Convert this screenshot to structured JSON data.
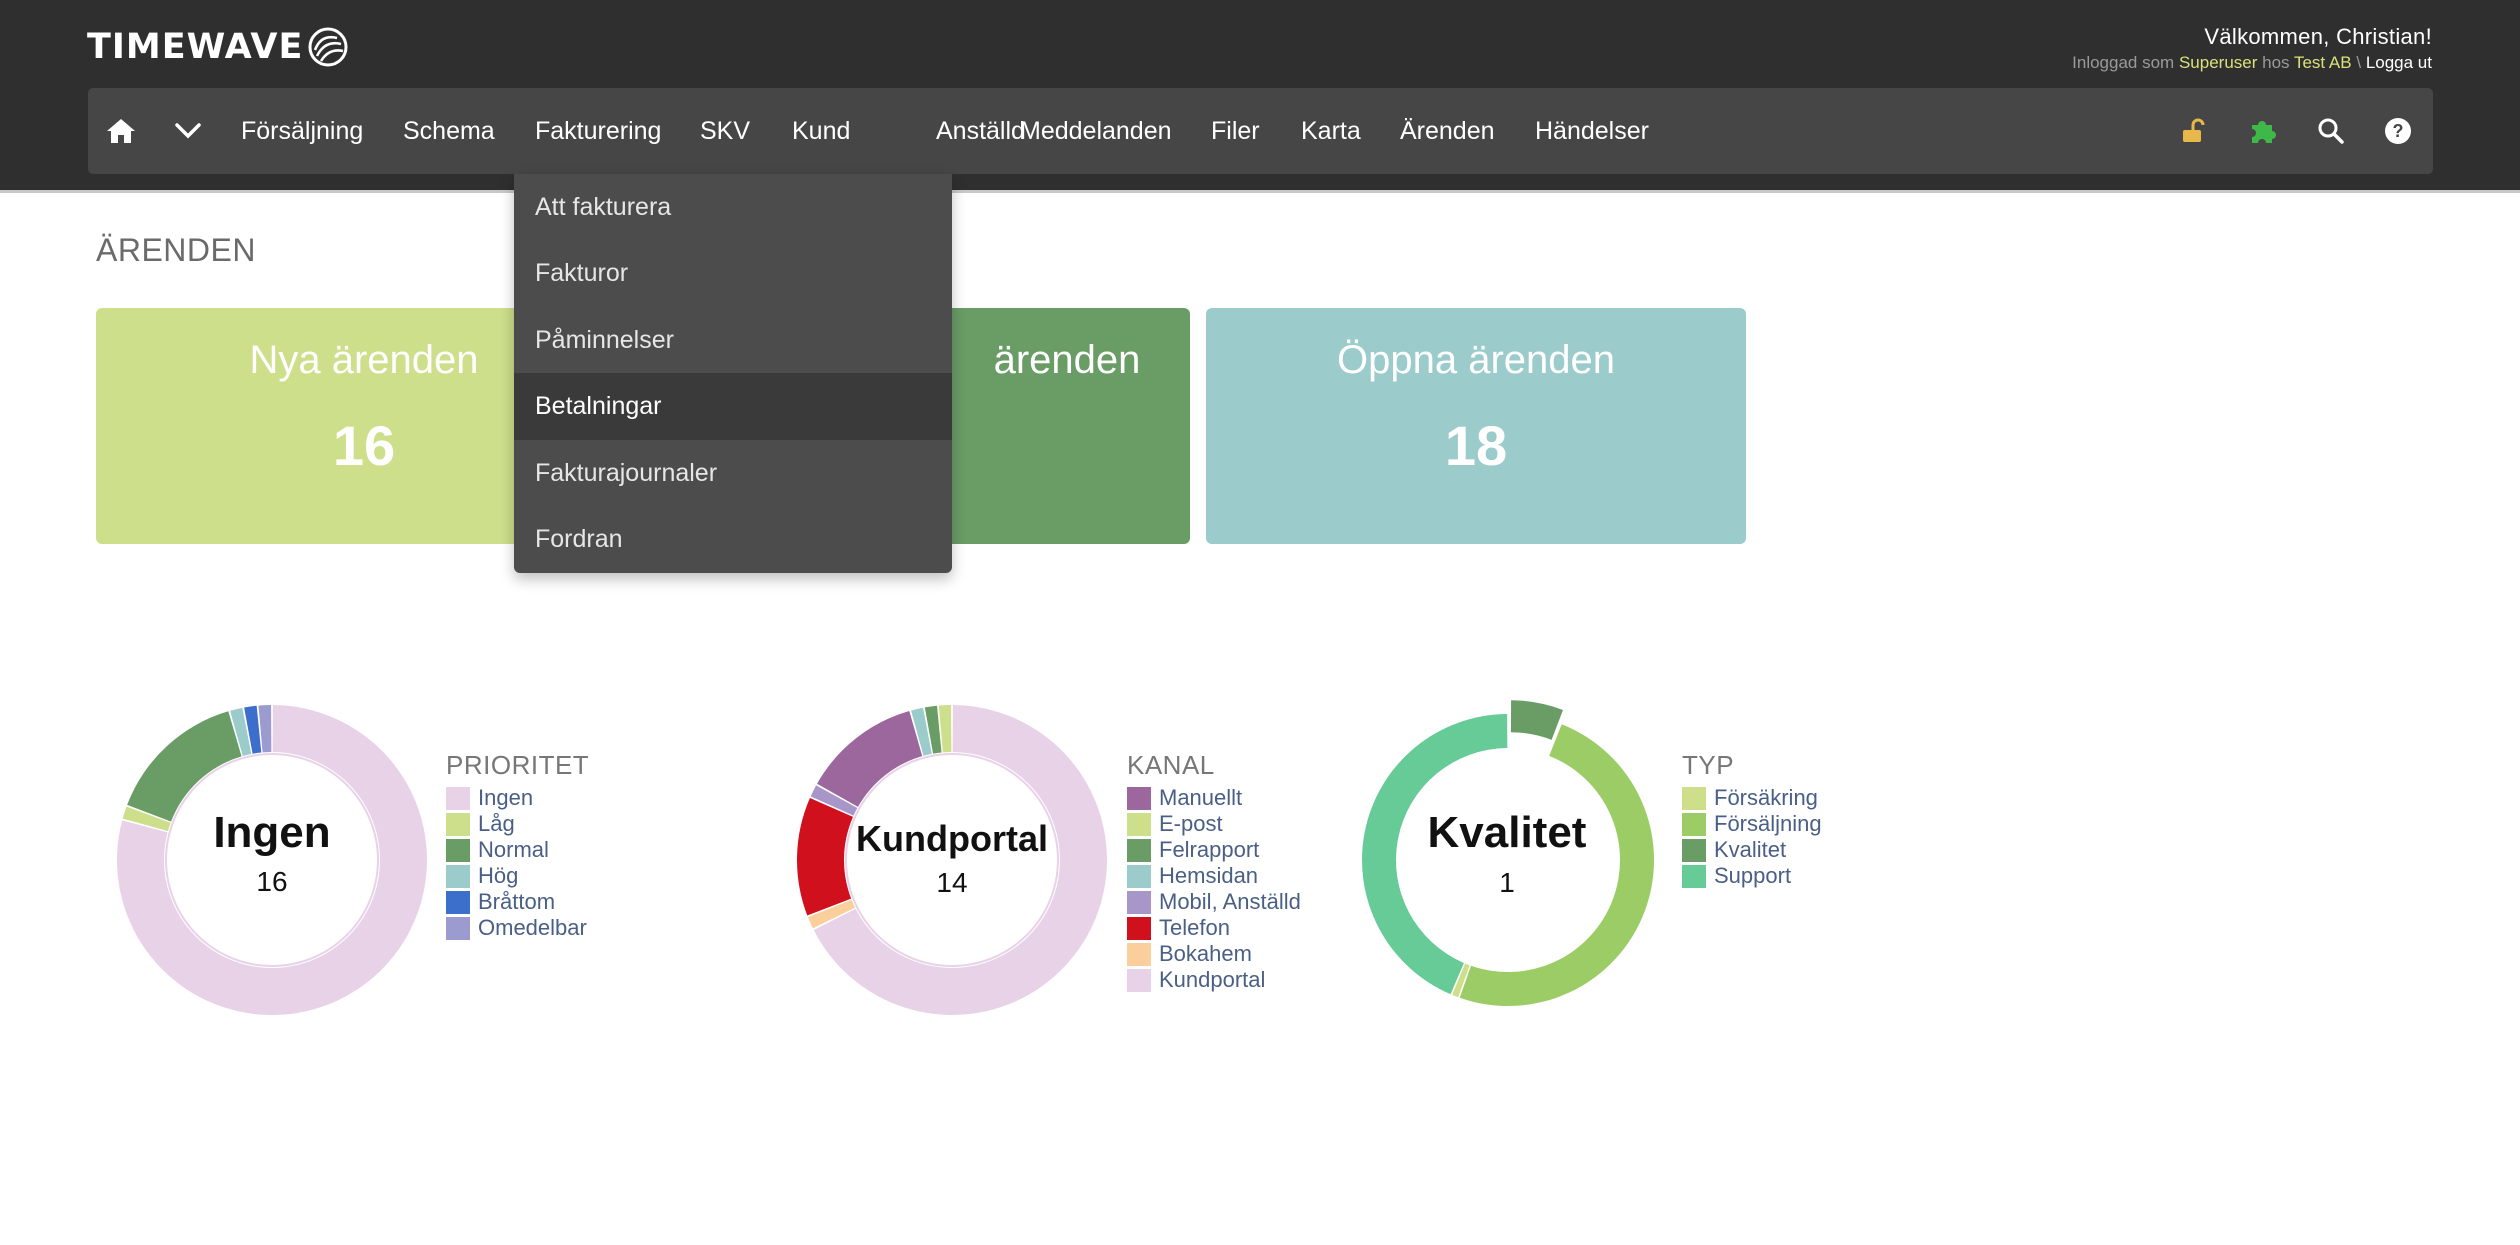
{
  "header": {
    "logo_text": "TIMEWAVE",
    "welcome": "Välkommen, Christian!",
    "login_prefix": "Inloggad som",
    "user": "Superuser",
    "at": "hos",
    "company": "Test AB",
    "separator": "\\",
    "logout": "Logga ut"
  },
  "nav": {
    "items": [
      "Försäljning",
      "Schema",
      "Fakturering",
      "SKV",
      "Kund",
      "Anställd",
      "Meddelanden",
      "Filer",
      "Karta",
      "Ärenden",
      "Händelser"
    ],
    "icons": [
      "home-icon",
      "chevron-down-icon",
      "unlock-icon",
      "puzzle-icon",
      "search-icon",
      "help-icon"
    ]
  },
  "dropdown": {
    "items": [
      "Att fakturera",
      "Fakturor",
      "Påminnelser",
      "Betalningar",
      "Fakturajournaler",
      "Fordran"
    ],
    "active_index": 3
  },
  "page": {
    "title": "ÄRENDEN"
  },
  "cards": [
    {
      "title": "Nya ärenden",
      "value": "16",
      "color": "#cddf8b"
    },
    {
      "title": "ärenden",
      "value": "",
      "color": "#6a9c66"
    },
    {
      "title": "Öppna ärenden",
      "value": "18",
      "color": "#9ccbcc"
    }
  ],
  "charts": [
    {
      "center_label": "Ingen",
      "center_value": "16",
      "legend_title": "PRIORITET",
      "legend": [
        {
          "label": "Ingen",
          "color": "#e8d2e8"
        },
        {
          "label": "Låg",
          "color": "#cddf8b"
        },
        {
          "label": "Normal",
          "color": "#6a9c66"
        },
        {
          "label": "Hög",
          "color": "#9ccbcc"
        },
        {
          "label": "Bråttom",
          "color": "#3c6fcc"
        },
        {
          "label": "Omedelbar",
          "color": "#9b9bcf"
        }
      ],
      "segments": [
        {
          "value": 16,
          "color": "#e8d2e8"
        },
        {
          "value": 0.3,
          "color": "#cddf8b"
        },
        {
          "value": 3,
          "color": "#6a9c66"
        },
        {
          "value": 0.3,
          "color": "#9ccbcc"
        },
        {
          "value": 0.3,
          "color": "#3c6fcc"
        },
        {
          "value": 0.3,
          "color": "#9b9bcf"
        }
      ]
    },
    {
      "center_label": "Kundportal",
      "center_value": "14",
      "legend_title": "KANAL",
      "legend": [
        {
          "label": "Manuellt",
          "color": "#9c679c"
        },
        {
          "label": "E-post",
          "color": "#cddf8b"
        },
        {
          "label": "Felrapport",
          "color": "#6a9c66"
        },
        {
          "label": "Hemsidan",
          "color": "#9ccbcc"
        },
        {
          "label": "Mobil, Anställd",
          "color": "#a896c8"
        },
        {
          "label": "Telefon",
          "color": "#d0101c"
        },
        {
          "label": "Bokahem",
          "color": "#fbcf9c"
        },
        {
          "label": "Kundportal",
          "color": "#e8d2e8"
        }
      ],
      "segments": [
        {
          "value": 14,
          "color": "#e8d2e8"
        },
        {
          "value": 0.3,
          "color": "#fbcf9c"
        },
        {
          "value": 2.6,
          "color": "#d0101c"
        },
        {
          "value": 0.3,
          "color": "#a896c8"
        },
        {
          "value": 2.6,
          "color": "#9c679c"
        },
        {
          "value": 0.3,
          "color": "#9ccbcc"
        },
        {
          "value": 0.3,
          "color": "#6a9c66"
        },
        {
          "value": 0.3,
          "color": "#cddf8b"
        }
      ]
    },
    {
      "center_label": "Kvalitet",
      "center_value": "1",
      "legend_title": "TYP",
      "legend": [
        {
          "label": "Försäkring",
          "color": "#cddf8b"
        },
        {
          "label": "Försäljning",
          "color": "#9ccc65"
        },
        {
          "label": "Kvalitet",
          "color": "#6a9c66"
        },
        {
          "label": "Support",
          "color": "#67cb97"
        }
      ],
      "segments": [
        {
          "value": 1,
          "color": "#6a9c66",
          "exploded": true
        },
        {
          "value": 8.4,
          "color": "#9ccc65"
        },
        {
          "value": 0.15,
          "color": "#cddf8b"
        },
        {
          "value": 7.4,
          "color": "#67cb97"
        }
      ]
    }
  ]
}
